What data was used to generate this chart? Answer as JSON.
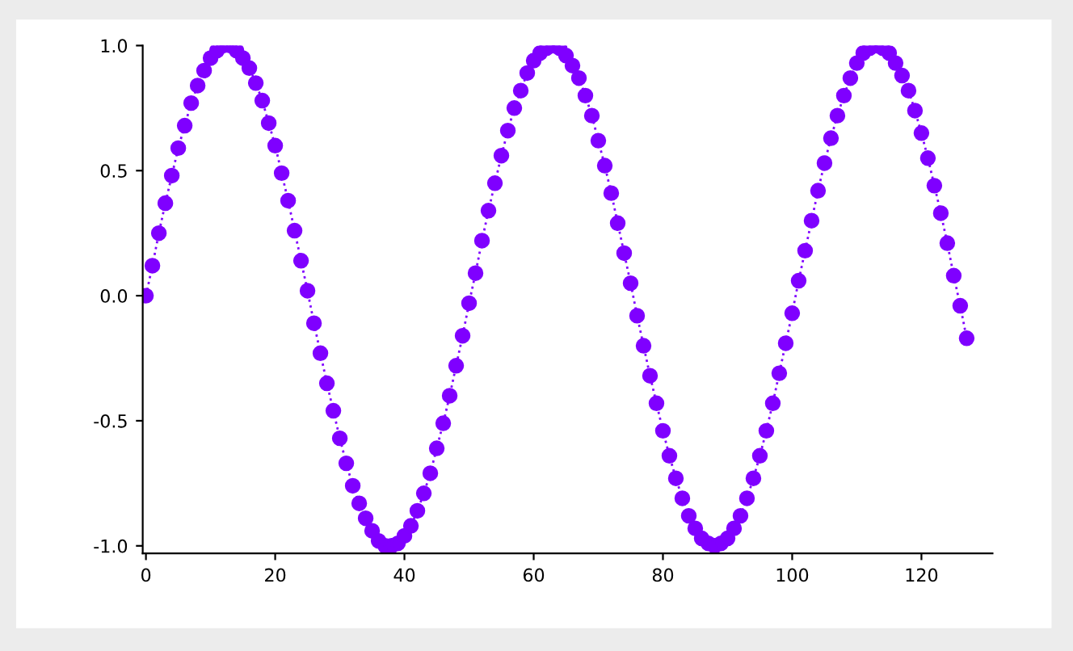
{
  "chart_data": {
    "type": "line",
    "marker": "circle",
    "line_style": "dotted",
    "grid": false,
    "legend": false,
    "x": [
      0,
      1,
      2,
      3,
      4,
      5,
      6,
      7,
      8,
      9,
      10,
      11,
      12,
      13,
      14,
      15,
      16,
      17,
      18,
      19,
      20,
      21,
      22,
      23,
      24,
      25,
      26,
      27,
      28,
      29,
      30,
      31,
      32,
      33,
      34,
      35,
      36,
      37,
      38,
      39,
      40,
      41,
      42,
      43,
      44,
      45,
      46,
      47,
      48,
      49,
      50,
      51,
      52,
      53,
      54,
      55,
      56,
      57,
      58,
      59,
      60,
      61,
      62,
      63,
      64,
      65,
      66,
      67,
      68,
      69,
      70,
      71,
      72,
      73,
      74,
      75,
      76,
      77,
      78,
      79,
      80,
      81,
      82,
      83,
      84,
      85,
      86,
      87,
      88,
      89,
      90,
      91,
      92,
      93,
      94,
      95,
      96,
      97,
      98,
      99,
      100,
      101,
      102,
      103,
      104,
      105,
      106,
      107,
      108,
      109,
      110,
      111,
      112,
      113,
      114,
      115,
      116,
      117,
      118,
      119,
      120,
      121,
      122,
      123,
      124,
      125,
      126,
      127
    ],
    "series": [
      {
        "color": "#7f00ff",
        "values": [
          0.0,
          0.12,
          0.25,
          0.37,
          0.48,
          0.59,
          0.68,
          0.77,
          0.84,
          0.9,
          0.95,
          0.98,
          1.0,
          1.0,
          0.98,
          0.95,
          0.91,
          0.85,
          0.78,
          0.69,
          0.6,
          0.49,
          0.38,
          0.26,
          0.14,
          0.02,
          -0.11,
          -0.23,
          -0.35,
          -0.46,
          -0.57,
          -0.67,
          -0.76,
          -0.83,
          -0.89,
          -0.94,
          -0.98,
          -1.0,
          -1.0,
          -0.99,
          -0.96,
          -0.92,
          -0.86,
          -0.79,
          -0.71,
          -0.61,
          -0.51,
          -0.4,
          -0.28,
          -0.16,
          -0.03,
          0.09,
          0.22,
          0.34,
          0.45,
          0.56,
          0.66,
          0.75,
          0.82,
          0.89,
          0.94,
          0.97,
          0.99,
          1.0,
          0.99,
          0.96,
          0.92,
          0.87,
          0.8,
          0.72,
          0.62,
          0.52,
          0.41,
          0.29,
          0.17,
          0.05,
          -0.08,
          -0.2,
          -0.32,
          -0.43,
          -0.54,
          -0.64,
          -0.73,
          -0.81,
          -0.88,
          -0.93,
          -0.97,
          -0.99,
          -1.0,
          -0.99,
          -0.97,
          -0.93,
          -0.88,
          -0.81,
          -0.73,
          -0.64,
          -0.54,
          -0.43,
          -0.31,
          -0.19,
          -0.07,
          0.06,
          0.18,
          0.3,
          0.42,
          0.53,
          0.63,
          0.72,
          0.8,
          0.87,
          0.93,
          0.97,
          0.99,
          1.0,
          0.99,
          0.97,
          0.93,
          0.88,
          0.82,
          0.74,
          0.65,
          0.55,
          0.44,
          0.33,
          0.21,
          0.08,
          -0.04,
          -0.17
        ]
      }
    ],
    "xlim": [
      -0.5,
      131
    ],
    "xticks": [
      0,
      20,
      40,
      60,
      80,
      100,
      120
    ],
    "ylim": [
      -1.03,
      1.0
    ],
    "yticks": [
      {
        "value": 1.0,
        "label": "1.0"
      },
      {
        "value": 0.5,
        "label": "0.5"
      },
      {
        "value": 0.0,
        "label": "0.0"
      },
      {
        "value": -0.5,
        "label": "-0.5"
      },
      {
        "value": -1.0,
        "label": "-1.0"
      }
    ]
  }
}
